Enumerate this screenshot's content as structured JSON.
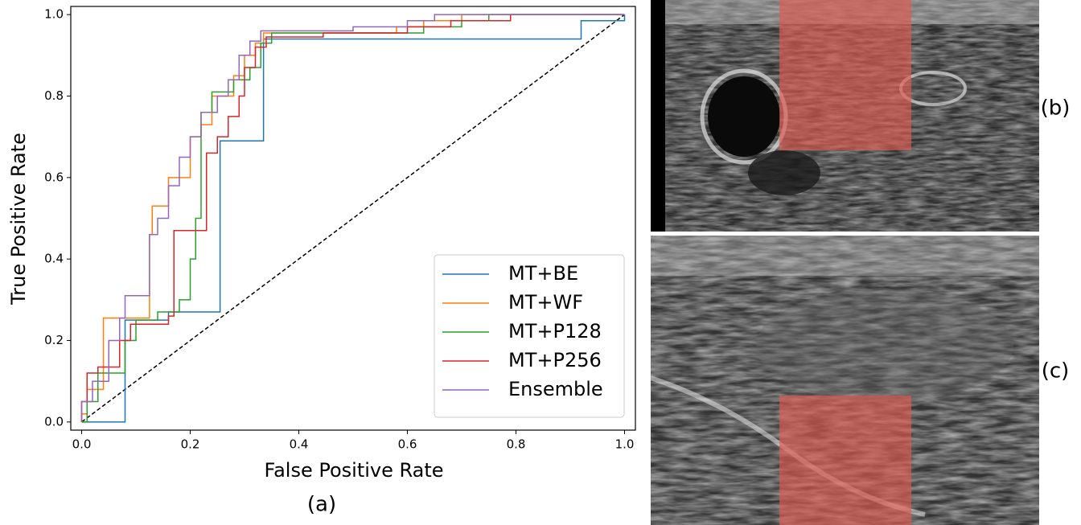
{
  "chart_data": {
    "type": "line",
    "xlabel": "False Positive Rate",
    "ylabel": "True Positive Rate",
    "xlim": [
      -0.02,
      1.02
    ],
    "ylim": [
      -0.02,
      1.02
    ],
    "xticks": [
      {
        "value": 0,
        "label": "0.0"
      },
      0.2,
      0.4,
      0.6,
      0.8,
      {
        "value": 1,
        "label": "1.0"
      }
    ],
    "yticks": [
      {
        "value": 0,
        "label": "0.0"
      },
      0.2,
      0.4,
      0.6,
      0.8,
      {
        "value": 1,
        "label": "1.0"
      }
    ],
    "legend": "lower right",
    "reference_line": {
      "x": [
        0,
        1
      ],
      "values": [
        0,
        1
      ],
      "color": "#000000",
      "style": "dashed"
    },
    "series": [
      {
        "name": "MT+BE",
        "color": "#1f77b4",
        "x": [
          0,
          0.08,
          0.08,
          0.16,
          0.16,
          0.255,
          0.255,
          0.335,
          0.335,
          0.92,
          0.92,
          1.0,
          1.0
        ],
        "values": [
          0,
          0,
          0.25,
          0.25,
          0.27,
          0.27,
          0.69,
          0.69,
          0.94,
          0.94,
          0.985,
          0.985,
          1.0
        ]
      },
      {
        "name": "MT+WF",
        "color": "#ff7f0e",
        "x": [
          0,
          0,
          0.01,
          0.01,
          0.04,
          0.04,
          0.125,
          0.125,
          0.13,
          0.13,
          0.16,
          0.16,
          0.2,
          0.2,
          0.22,
          0.22,
          0.24,
          0.24,
          0.28,
          0.28,
          0.3,
          0.3,
          0.32,
          0.32,
          0.335,
          0.335,
          0.58,
          0.58,
          0.63,
          0.63,
          0.7,
          0.7,
          1.0
        ],
        "values": [
          0,
          0.02,
          0.02,
          0.08,
          0.08,
          0.255,
          0.255,
          0.46,
          0.46,
          0.53,
          0.53,
          0.6,
          0.6,
          0.7,
          0.7,
          0.73,
          0.73,
          0.8,
          0.8,
          0.85,
          0.85,
          0.9,
          0.9,
          0.93,
          0.93,
          0.955,
          0.955,
          0.97,
          0.97,
          0.985,
          0.985,
          1.0,
          1.0
        ]
      },
      {
        "name": "MT+P128",
        "color": "#2ca02c",
        "x": [
          0,
          0.01,
          0.01,
          0.03,
          0.03,
          0.08,
          0.08,
          0.1,
          0.1,
          0.14,
          0.14,
          0.18,
          0.18,
          0.2,
          0.2,
          0.21,
          0.21,
          0.22,
          0.22,
          0.24,
          0.24,
          0.28,
          0.28,
          0.31,
          0.31,
          0.33,
          0.33,
          0.35,
          0.35,
          0.63,
          0.63,
          0.7,
          0.7,
          0.75,
          0.75,
          1.0
        ],
        "values": [
          0,
          0,
          0.05,
          0.05,
          0.12,
          0.12,
          0.2,
          0.2,
          0.25,
          0.25,
          0.27,
          0.27,
          0.3,
          0.3,
          0.4,
          0.4,
          0.5,
          0.5,
          0.76,
          0.76,
          0.81,
          0.81,
          0.84,
          0.84,
          0.87,
          0.87,
          0.93,
          0.93,
          0.955,
          0.955,
          0.97,
          0.97,
          0.985,
          0.985,
          1.0,
          1.0
        ]
      },
      {
        "name": "MT+P256",
        "color": "#d62728",
        "x": [
          0,
          0,
          0.01,
          0.01,
          0.03,
          0.03,
          0.07,
          0.07,
          0.09,
          0.09,
          0.16,
          0.16,
          0.17,
          0.17,
          0.23,
          0.23,
          0.25,
          0.25,
          0.27,
          0.27,
          0.29,
          0.29,
          0.3,
          0.3,
          0.32,
          0.32,
          0.34,
          0.34,
          0.445,
          0.445,
          0.6,
          0.6,
          0.68,
          0.68,
          0.79,
          0.79,
          1.0
        ],
        "values": [
          0,
          0.05,
          0.05,
          0.12,
          0.12,
          0.135,
          0.135,
          0.2,
          0.2,
          0.24,
          0.24,
          0.26,
          0.26,
          0.47,
          0.47,
          0.66,
          0.66,
          0.7,
          0.7,
          0.75,
          0.75,
          0.8,
          0.8,
          0.87,
          0.87,
          0.92,
          0.92,
          0.945,
          0.945,
          0.955,
          0.955,
          0.97,
          0.97,
          0.985,
          0.985,
          1.0,
          1.0
        ]
      },
      {
        "name": "Ensemble",
        "color": "#9467bd",
        "x": [
          0,
          0,
          0.02,
          0.02,
          0.05,
          0.05,
          0.07,
          0.07,
          0.08,
          0.08,
          0.125,
          0.125,
          0.14,
          0.14,
          0.16,
          0.16,
          0.18,
          0.18,
          0.2,
          0.2,
          0.22,
          0.22,
          0.25,
          0.25,
          0.27,
          0.27,
          0.29,
          0.29,
          0.31,
          0.31,
          0.33,
          0.33,
          0.5,
          0.5,
          0.6,
          0.6,
          0.65,
          0.65,
          1.0
        ],
        "values": [
          0,
          0.05,
          0.05,
          0.1,
          0.1,
          0.2,
          0.2,
          0.255,
          0.255,
          0.31,
          0.31,
          0.46,
          0.46,
          0.5,
          0.5,
          0.58,
          0.58,
          0.65,
          0.65,
          0.7,
          0.7,
          0.76,
          0.76,
          0.8,
          0.8,
          0.84,
          0.84,
          0.9,
          0.9,
          0.935,
          0.935,
          0.96,
          0.96,
          0.97,
          0.97,
          0.985,
          0.985,
          1.0,
          1.0
        ]
      }
    ]
  },
  "panel_labels": [
    "(a)",
    "(b)",
    "(c)"
  ]
}
